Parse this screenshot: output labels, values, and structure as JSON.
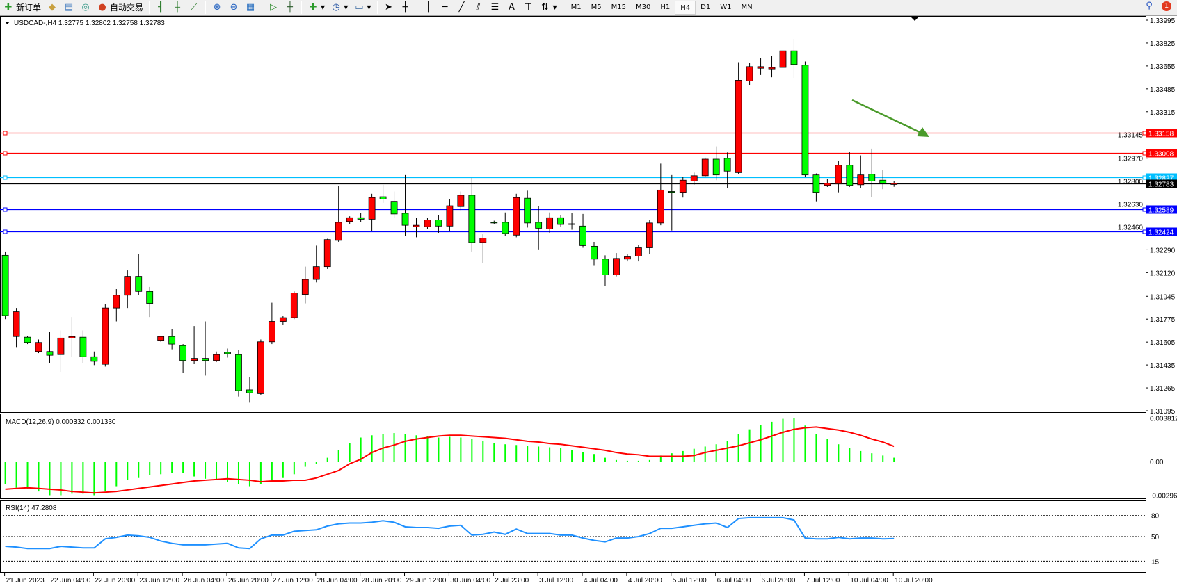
{
  "toolbar": {
    "new_order": "新订单",
    "auto_trading": "自动交易",
    "timeframes": [
      "M1",
      "M5",
      "M15",
      "M30",
      "H1",
      "H4",
      "D1",
      "W1",
      "MN"
    ],
    "active_timeframe": "H4",
    "notification_count": "1"
  },
  "chart_header": "USDCAD-,H4  1.32775 1.32802 1.32758 1.32783",
  "colors": {
    "bull": "#ff0000",
    "bear": "#00ff00",
    "resistance": "#ff0000",
    "mid": "#00bfff",
    "support": "#0000ff",
    "price_line": "#000000",
    "arrow": "#4a9a2a",
    "macd_hist": "#00ff00",
    "macd_signal": "#ff0000",
    "rsi": "#1e90ff"
  },
  "chart_data": [
    {
      "type": "candlestick",
      "symbol": "USDCAD-",
      "timeframe": "H4",
      "ylim": [
        1.31095,
        1.33995
      ],
      "y_ticks": [
        "1.33995",
        "1.33825",
        "1.33655",
        "1.33485",
        "1.33315",
        "1.33145",
        "1.32970",
        "1.32800",
        "1.32630",
        "1.32460",
        "1.32290",
        "1.32120",
        "1.31945",
        "1.31775",
        "1.31605",
        "1.31435",
        "1.31265",
        "1.31095"
      ],
      "x_ticks": [
        {
          "bar": 1,
          "label": "21 Jun 2023"
        },
        {
          "bar": 5,
          "label": "22 Jun 04:00"
        },
        {
          "bar": 9,
          "label": "22 Jun 20:00"
        },
        {
          "bar": 13,
          "label": "23 Jun 12:00"
        },
        {
          "bar": 17,
          "label": "26 Jun 04:00"
        },
        {
          "bar": 21,
          "label": "26 Jun 20:00"
        },
        {
          "bar": 25,
          "label": "27 Jun 12:00"
        },
        {
          "bar": 29,
          "label": "28 Jun 04:00"
        },
        {
          "bar": 33,
          "label": "28 Jun 20:00"
        },
        {
          "bar": 37,
          "label": "29 Jun 12:00"
        },
        {
          "bar": 41,
          "label": "30 Jun 04:00"
        },
        {
          "bar": 45,
          "label": "2 Jul 23:00"
        },
        {
          "bar": 49,
          "label": "3 Jul 12:00"
        },
        {
          "bar": 53,
          "label": "4 Jul 04:00"
        },
        {
          "bar": 57,
          "label": "4 Jul 20:00"
        },
        {
          "bar": 61,
          "label": "5 Jul 12:00"
        },
        {
          "bar": 65,
          "label": "6 Jul 04:00"
        },
        {
          "bar": 69,
          "label": "6 Jul 20:00"
        },
        {
          "bar": 73,
          "label": "7 Jul 12:00"
        },
        {
          "bar": 77,
          "label": "10 Jul 04:00"
        },
        {
          "bar": 81,
          "label": "10 Jul 20:00"
        }
      ],
      "ohlc": [
        [
          1.32249,
          1.32277,
          1.31775,
          1.31802
        ],
        [
          1.31646,
          1.31858,
          1.31568,
          1.3183
        ],
        [
          1.31641,
          1.31652,
          1.3159,
          1.31602
        ],
        [
          1.31535,
          1.31624,
          1.31523,
          1.31602
        ],
        [
          1.31535,
          1.3168,
          1.31451,
          1.31507
        ],
        [
          1.31512,
          1.31691,
          1.31384,
          1.31635
        ],
        [
          1.31635,
          1.31791,
          1.31496,
          1.31646
        ],
        [
          1.31641,
          1.31691,
          1.31451,
          1.31496
        ],
        [
          1.31496,
          1.31535,
          1.31434,
          1.31462
        ],
        [
          1.3144,
          1.31886,
          1.31423,
          1.31858
        ],
        [
          1.31858,
          1.31998,
          1.31758,
          1.31953
        ],
        [
          1.31953,
          1.32137,
          1.31858,
          1.32093
        ],
        [
          1.32093,
          1.3226,
          1.31953,
          1.31981
        ],
        [
          1.31981,
          1.32014,
          1.31791,
          1.31892
        ],
        [
          1.31618,
          1.31652,
          1.31607,
          1.31646
        ],
        [
          1.31646,
          1.31702,
          1.31551,
          1.3159
        ],
        [
          1.31579,
          1.3159,
          1.31378,
          1.31468
        ],
        [
          1.31468,
          1.31724,
          1.31445,
          1.31484
        ],
        [
          1.31484,
          1.31758,
          1.31356,
          1.31468
        ],
        [
          1.31468,
          1.31535,
          1.31456,
          1.31512
        ],
        [
          1.31529,
          1.31557,
          1.3149,
          1.31518
        ],
        [
          1.31512,
          1.31546,
          1.312,
          1.31244
        ],
        [
          1.3125,
          1.31345,
          1.31155,
          1.31228
        ],
        [
          1.31222,
          1.31624,
          1.31211,
          1.31607
        ],
        [
          1.31607,
          1.31897,
          1.3159,
          1.31758
        ],
        [
          1.31758,
          1.31802,
          1.31735,
          1.31786
        ],
        [
          1.31786,
          1.31981,
          1.31775,
          1.3197
        ],
        [
          1.31959,
          1.32165,
          1.31892,
          1.3207
        ],
        [
          1.3207,
          1.32321,
          1.32048,
          1.32165
        ],
        [
          1.32165,
          1.32372,
          1.32148,
          1.32366
        ],
        [
          1.3236,
          1.32762,
          1.32349,
          1.32494
        ],
        [
          1.325,
          1.32539,
          1.32483,
          1.32528
        ],
        [
          1.32528,
          1.32561,
          1.32494,
          1.32517
        ],
        [
          1.32517,
          1.32706,
          1.32427,
          1.32678
        ],
        [
          1.32684,
          1.32773,
          1.32639,
          1.32667
        ],
        [
          1.3265,
          1.32723,
          1.32528,
          1.32556
        ],
        [
          1.32561,
          1.32845,
          1.32394,
          1.32472
        ],
        [
          1.32461,
          1.32528,
          1.32383,
          1.32472
        ],
        [
          1.32461,
          1.32528,
          1.32444,
          1.32511
        ],
        [
          1.32511,
          1.3255,
          1.32416,
          1.32466
        ],
        [
          1.32466,
          1.32667,
          1.32427,
          1.32617
        ],
        [
          1.32611,
          1.32723,
          1.32584,
          1.32695
        ],
        [
          1.32695,
          1.32824,
          1.32277,
          1.32344
        ],
        [
          1.32344,
          1.32405,
          1.32193,
          1.32377
        ],
        [
          1.32494,
          1.32506,
          1.32478,
          1.32489
        ],
        [
          1.32494,
          1.32567,
          1.32394,
          1.32411
        ],
        [
          1.32399,
          1.32706,
          1.32383,
          1.32678
        ],
        [
          1.32673,
          1.32729,
          1.32455,
          1.32489
        ],
        [
          1.32494,
          1.32617,
          1.32293,
          1.3245
        ],
        [
          1.32444,
          1.32567,
          1.32416,
          1.32528
        ],
        [
          1.32528,
          1.3255,
          1.32461,
          1.32478
        ],
        [
          1.32483,
          1.32561,
          1.32439,
          1.32478
        ],
        [
          1.32466,
          1.32556,
          1.32305,
          1.32321
        ],
        [
          1.32316,
          1.32349,
          1.32176,
          1.32221
        ],
        [
          1.32221,
          1.32249,
          1.3202,
          1.32104
        ],
        [
          1.32104,
          1.32266,
          1.32093,
          1.32226
        ],
        [
          1.32221,
          1.3226,
          1.32204,
          1.32238
        ],
        [
          1.32243,
          1.32327,
          1.32204,
          1.32305
        ],
        [
          1.32305,
          1.32511,
          1.3226,
          1.32489
        ],
        [
          1.32489,
          1.3293,
          1.32472,
          1.32734
        ],
        [
          1.32723,
          1.32845,
          1.32433,
          1.32717
        ],
        [
          1.32717,
          1.32829,
          1.32678,
          1.32807
        ],
        [
          1.32801,
          1.32863,
          1.32773,
          1.3284
        ],
        [
          1.3284,
          1.32974,
          1.32829,
          1.32963
        ],
        [
          1.32963,
          1.33058,
          1.32807,
          1.32846
        ],
        [
          1.32969,
          1.33013,
          1.32751,
          1.32874
        ],
        [
          1.32863,
          1.33683,
          1.32851,
          1.33549
        ],
        [
          1.33544,
          1.33679,
          1.33515,
          1.3365
        ],
        [
          1.33638,
          1.33716,
          1.33588,
          1.3365
        ],
        [
          1.33633,
          1.33731,
          1.33571,
          1.33644
        ],
        [
          1.33644,
          1.33794,
          1.3356,
          1.33767
        ],
        [
          1.33767,
          1.33856,
          1.33566,
          1.33666
        ],
        [
          1.33661,
          1.33688,
          1.32829,
          1.32846
        ],
        [
          1.32846,
          1.32857,
          1.3265,
          1.32717
        ],
        [
          1.32768,
          1.32818,
          1.32757,
          1.32784
        ],
        [
          1.32779,
          1.32952,
          1.32717,
          1.32918
        ],
        [
          1.32918,
          1.33019,
          1.32757,
          1.32768
        ],
        [
          1.32773,
          1.32991,
          1.32751,
          1.32846
        ],
        [
          1.32851,
          1.33041,
          1.32684,
          1.32801
        ],
        [
          1.32807,
          1.32885,
          1.3274,
          1.32784
        ],
        [
          1.32775,
          1.32802,
          1.32758,
          1.32783
        ]
      ],
      "hlines": [
        {
          "price": "1.33158",
          "color": "#ff0000"
        },
        {
          "price": "1.33008",
          "color": "#ff0000"
        },
        {
          "price": "1.32827",
          "color": "#00bfff"
        },
        {
          "price": "1.32783",
          "color": "#000000"
        },
        {
          "price": "1.32589",
          "color": "#0000ff"
        },
        {
          "price": "1.32424",
          "color": "#0000ff"
        }
      ],
      "annotation": {
        "type": "arrow",
        "direction": "down-right",
        "color": "#4a9a2a"
      }
    },
    {
      "type": "bar+line",
      "label": "MACD(12,26,9) 0.000332 0.001330",
      "ylim": [
        -0.002961,
        0.003812
      ],
      "y_ticks": [
        "0.003812",
        "0.00",
        "-0.002961"
      ],
      "histogram": [
        -0.001972,
        -0.0023,
        -0.002432,
        -0.002629,
        -0.002957,
        -0.002957,
        -0.002826,
        -0.002826,
        -0.002957,
        -0.002629,
        -0.002169,
        -0.001643,
        -0.001446,
        -0.001183,
        -0.001117,
        -0.000986,
        -0.000986,
        -0.001314,
        -0.001512,
        -0.001643,
        -0.001774,
        -0.001972,
        -0.002169,
        -0.001972,
        -0.001643,
        -0.001446,
        -0.001117,
        -0.00046,
        -0.000197,
        0.000329,
        0.000986,
        0.001643,
        0.002103,
        0.0023,
        0.002432,
        0.002497,
        0.002432,
        0.0023,
        0.002234,
        0.002103,
        0.002169,
        0.002103,
        0.001972,
        0.001774,
        0.001643,
        0.001512,
        0.001446,
        0.00138,
        0.001314,
        0.001249,
        0.001183,
        0.000986,
        0.000854,
        0.000657,
        0.000329,
        0.000131,
        6.6e-05,
        6.6e-05,
        0.000131,
        0.000526,
        0.000723,
        0.00092,
        0.001117,
        0.001314,
        0.001512,
        0.001774,
        0.002432,
        0.002826,
        0.00322,
        0.003483,
        0.003746,
        0.003812,
        0.003155,
        0.002432,
        0.001972,
        0.001512,
        0.001183,
        0.00092,
        0.000723,
        0.000526,
        0.000332
      ],
      "signal": [
        -0.002432,
        -0.002366,
        -0.0023,
        -0.002366,
        -0.002432,
        -0.002497,
        -0.002629,
        -0.002695,
        -0.00276,
        -0.002695,
        -0.002629,
        -0.002497,
        -0.002366,
        -0.002234,
        -0.002103,
        -0.001972,
        -0.00184,
        -0.001709,
        -0.001643,
        -0.001577,
        -0.001512,
        -0.001577,
        -0.001643,
        -0.001774,
        -0.001709,
        -0.001709,
        -0.001643,
        -0.001643,
        -0.001446,
        -0.001117,
        -0.000789,
        -0.000197,
        0.000197,
        0.000789,
        0.001183,
        0.001446,
        0.001774,
        0.001972,
        0.002103,
        0.002234,
        0.0023,
        0.0023,
        0.002234,
        0.002169,
        0.002103,
        0.002037,
        0.001906,
        0.001774,
        0.001709,
        0.001577,
        0.001512,
        0.00138,
        0.001249,
        0.001117,
        0.000986,
        0.000789,
        0.000657,
        0.000591,
        0.00046,
        0.00046,
        0.00046,
        0.00046,
        0.000526,
        0.000789,
        0.000986,
        0.001183,
        0.00138,
        0.001643,
        0.001906,
        0.002234,
        0.002563,
        0.002826,
        0.002957,
        0.003023,
        0.002892,
        0.00276,
        0.002563,
        0.0023,
        0.001972,
        0.001709,
        0.00133
      ]
    },
    {
      "type": "line",
      "label": "RSI(14) 47.2808",
      "ylim": [
        0,
        100
      ],
      "levels": [
        "80",
        "50",
        "15"
      ],
      "values": [
        36.1,
        35.0,
        32.9,
        32.9,
        32.9,
        36.1,
        35.0,
        33.9,
        33.9,
        46.8,
        48.9,
        52.1,
        51.1,
        48.9,
        43.6,
        40.4,
        38.2,
        38.2,
        38.2,
        39.3,
        40.4,
        33.9,
        32.9,
        46.8,
        52.1,
        52.1,
        57.5,
        58.6,
        59.6,
        65.0,
        68.2,
        69.3,
        69.3,
        70.4,
        72.5,
        70.4,
        63.9,
        62.9,
        62.9,
        61.8,
        65.0,
        66.1,
        52.1,
        53.2,
        56.4,
        53.2,
        60.7,
        54.3,
        54.3,
        54.3,
        52.1,
        52.1,
        47.9,
        44.6,
        42.5,
        47.9,
        47.9,
        50.0,
        54.3,
        61.8,
        61.8,
        63.9,
        66.1,
        68.2,
        69.3,
        62.9,
        75.7,
        76.8,
        76.8,
        76.8,
        76.8,
        73.6,
        47.9,
        46.8,
        46.8,
        48.9,
        46.8,
        47.9,
        47.9,
        46.8,
        47.28
      ]
    }
  ]
}
